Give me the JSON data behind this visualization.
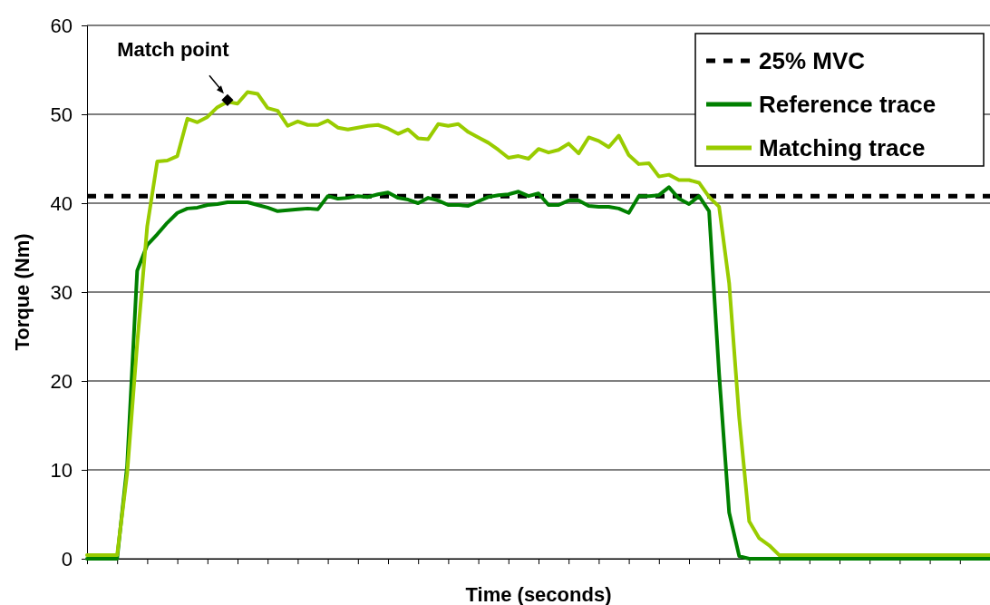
{
  "chart_data": {
    "type": "line",
    "xlabel": "Time (seconds)",
    "ylabel": "Torque (Nm)",
    "categories": [
      null,
      null,
      null,
      null,
      null,
      null,
      null,
      null,
      null,
      null,
      null,
      null,
      null,
      null,
      null,
      null,
      null,
      null,
      null,
      null,
      null,
      null,
      null,
      null,
      null,
      null,
      null,
      null,
      null,
      null,
      null,
      null,
      null,
      null,
      null,
      null,
      null,
      null,
      null,
      null,
      null,
      null,
      null,
      null,
      null,
      null,
      null,
      null,
      null,
      null,
      null,
      null,
      null,
      null,
      null,
      null,
      null,
      null,
      null,
      null,
      null,
      null,
      null,
      null,
      null,
      null,
      null,
      null,
      null,
      null,
      null,
      null,
      null,
      null,
      null,
      null,
      null,
      null,
      null,
      null,
      null,
      null,
      null,
      null,
      null,
      null,
      null,
      null,
      null,
      null,
      null
    ],
    "series": [
      {
        "name": "Reference trace",
        "color": "#008000",
        "values": [
          0.0,
          0.0,
          0.0,
          0.0,
          10.5,
          32.4,
          35.3,
          36.5,
          37.8,
          38.9,
          39.4,
          39.5,
          39.8,
          39.9,
          40.1,
          40.1,
          40.1,
          39.8,
          39.5,
          39.1,
          39.2,
          39.3,
          39.4,
          39.3,
          40.8,
          40.5,
          40.6,
          40.8,
          40.7,
          41.0,
          41.2,
          40.6,
          40.4,
          40.0,
          40.6,
          40.3,
          39.8,
          39.8,
          39.7,
          40.2,
          40.7,
          40.9,
          41.0,
          41.3,
          40.8,
          41.1,
          39.8,
          39.8,
          40.3,
          40.3,
          39.7,
          39.6,
          39.6,
          39.4,
          38.9,
          40.8,
          40.8,
          40.9,
          41.8,
          40.5,
          39.9,
          40.8,
          39.1,
          20.8,
          5.2,
          0.3,
          0.0,
          0.0,
          0.0,
          0.0,
          0.0,
          0.0,
          0.0,
          0.0,
          0.0,
          0.0,
          0.0,
          0.0,
          0.0,
          0.0,
          0.0,
          0.0,
          0.0,
          0.0,
          0.0,
          0.0,
          0.0,
          0.0,
          0.0,
          0.0,
          0.0
        ]
      },
      {
        "name": "Matching trace",
        "color": "#99cc00",
        "values": [
          0.4,
          0.4,
          0.4,
          0.4,
          9.6,
          24.2,
          37.4,
          44.7,
          44.8,
          45.3,
          49.5,
          49.1,
          49.7,
          50.8,
          51.4,
          51.2,
          52.5,
          52.3,
          50.7,
          50.4,
          48.7,
          49.2,
          48.8,
          48.8,
          49.3,
          48.5,
          48.3,
          48.5,
          48.7,
          48.8,
          48.4,
          47.8,
          48.3,
          47.3,
          47.2,
          48.9,
          48.7,
          48.9,
          48.0,
          47.4,
          46.8,
          46.0,
          45.1,
          45.3,
          45.0,
          46.1,
          45.7,
          46.0,
          46.7,
          45.6,
          47.4,
          47.0,
          46.3,
          47.6,
          45.4,
          44.4,
          44.5,
          43.0,
          43.2,
          42.6,
          42.6,
          42.3,
          40.7,
          39.6,
          31,
          15.9,
          4.2,
          2.3,
          1.5,
          0.4,
          0.4,
          0.4,
          0.4,
          0.4,
          0.4,
          0.4,
          0.4,
          0.4,
          0.4,
          0.4,
          0.4,
          0.4,
          0.4,
          0.4,
          0.4,
          0.4,
          0.4,
          0.4,
          0.4,
          0.4,
          0.4
        ]
      },
      {
        "type": "scatter",
        "marker": "diamond",
        "color": "#000000",
        "values": [
          null,
          null,
          null,
          null,
          null,
          null,
          null,
          null,
          null,
          null,
          null,
          null,
          null,
          null,
          51.6,
          null,
          null,
          null,
          null,
          null,
          null,
          null,
          null,
          null,
          null,
          null,
          null,
          null,
          null,
          null,
          null,
          null,
          null,
          null,
          null,
          null,
          null,
          null,
          null,
          null,
          null,
          null,
          null,
          null,
          null,
          null,
          null,
          null,
          null,
          null,
          null,
          null,
          null,
          null,
          null,
          null,
          null,
          null,
          null,
          null,
          null,
          null,
          null,
          null,
          null,
          null,
          null,
          null,
          null,
          null,
          null,
          null,
          null,
          null,
          null,
          null,
          null,
          null,
          null,
          null,
          null,
          null,
          null,
          null,
          null,
          null,
          null,
          null,
          null,
          null,
          null
        ]
      }
    ],
    "ylim": [
      0,
      60
    ],
    "yticks": [
      0,
      10,
      20,
      30,
      40,
      50,
      60
    ],
    "grid": "y",
    "legend": "top right",
    "line_style": "solid",
    "marker": "none",
    "ref_lines": [
      {
        "axis": "y",
        "value": 40.8,
        "label": "25% MVC",
        "color": "#000000",
        "line_style": "dashed"
      }
    ],
    "annotations": [
      "Match point"
    ]
  }
}
